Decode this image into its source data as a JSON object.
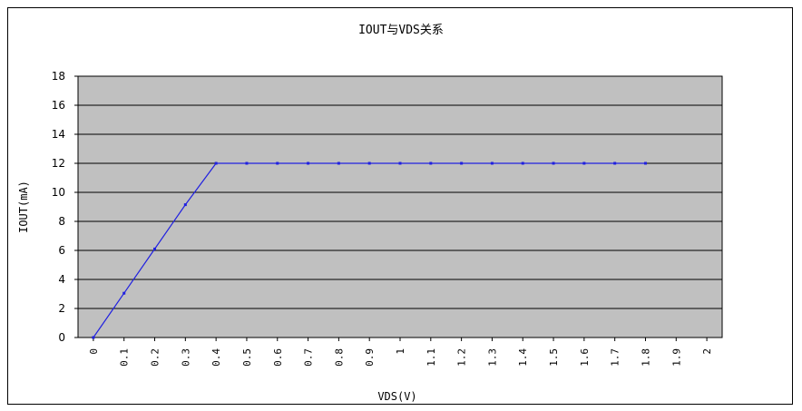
{
  "chart_data": {
    "type": "line",
    "title": "IOUT与VDS关系",
    "xlabel": "VDS(V)",
    "ylabel": "IOUT(mA)",
    "ylim": [
      0,
      18
    ],
    "yticks": [
      "0",
      "2",
      "4",
      "6",
      "8",
      "10",
      "12",
      "14",
      "16",
      "18"
    ],
    "categories": [
      "0",
      "0.1",
      "0.2",
      "0.3",
      "0.4",
      "0.5",
      "0.6",
      "0.7",
      "0.8",
      "0.9",
      "1",
      "1.1",
      "1.2",
      "1.3",
      "1.4",
      "1.5",
      "1.6",
      "1.7",
      "1.8",
      "1.9",
      "2"
    ],
    "series": [
      {
        "name": "",
        "color": "#2020e0",
        "values": [
          0,
          3.05,
          6.1,
          9.15,
          12.0,
          12.0,
          12.0,
          12.0,
          12.0,
          12.0,
          12.0,
          12.0,
          12.0,
          12.0,
          12.0,
          12.0,
          12.0,
          12.0,
          12.0,
          null,
          null
        ]
      }
    ],
    "plot_background": "#c0c0c0",
    "grid": true,
    "legend": "none"
  }
}
